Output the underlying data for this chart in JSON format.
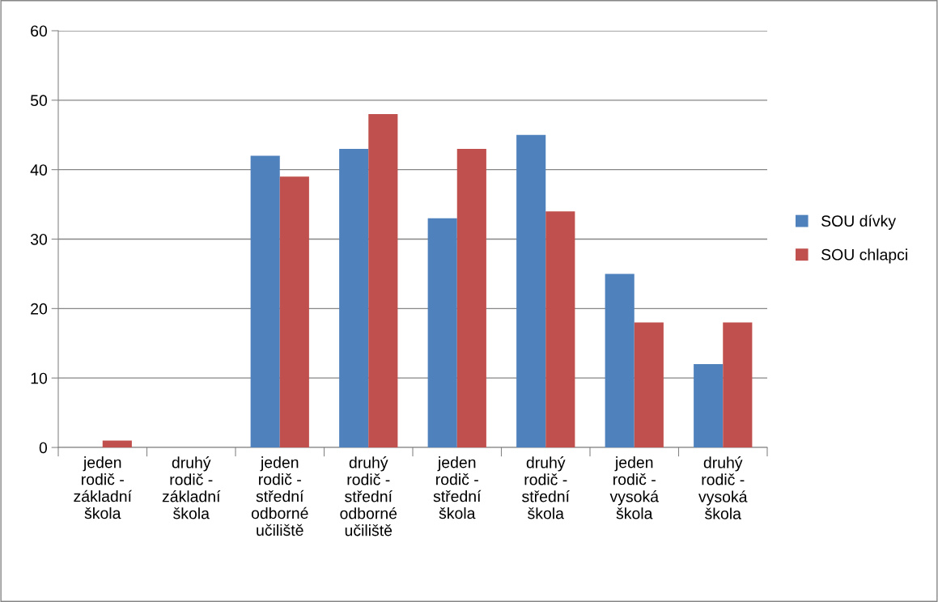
{
  "chart_data": {
    "type": "bar",
    "categories": [
      "jeden\nrodič -\nzákladní\nškola",
      "druhý\nrodič -\nzákladní\nškola",
      "jeden\nrodič -\nstřední\nodborné\nučiliště",
      "druhý\nrodič -\nstřední\nodborné\nučiliště",
      "jeden\nrodič -\nstřední\nškola",
      "druhý\nrodič -\nstřední\nškola",
      "jeden\nrodič -\nvysoká\nškola",
      "druhý\nrodič -\nvysoká\nškola"
    ],
    "series": [
      {
        "name": "SOU dívky",
        "color": "#4f81bd",
        "values": [
          0,
          0,
          42,
          43,
          33,
          45,
          25,
          12
        ]
      },
      {
        "name": "SOU chlapci",
        "color": "#c0504d",
        "values": [
          1,
          0,
          39,
          48,
          43,
          34,
          18,
          18
        ]
      }
    ],
    "ylim": [
      0,
      60
    ],
    "yticks": [
      0,
      10,
      20,
      30,
      40,
      50,
      60
    ],
    "grid": "y",
    "legend": "right"
  }
}
